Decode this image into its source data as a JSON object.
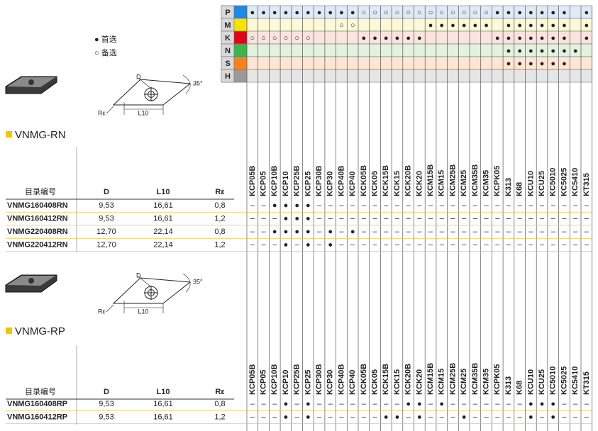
{
  "legend": {
    "preferred": "● 首选",
    "alternative": "○ 备选"
  },
  "grades": [
    "KCP05B",
    "KCP05",
    "KCP10B",
    "KCP10",
    "KCP25B",
    "KCP25",
    "KCP30B",
    "KCP30",
    "KCP40B",
    "KCP40",
    "KCK05B",
    "KCK05",
    "KCK15B",
    "KCK15",
    "KCK20B",
    "KCK20",
    "KCM15B",
    "KCM15",
    "KCM25B",
    "KCM25",
    "KCM35B",
    "KCM35",
    "KCPK05",
    "K313",
    "K68",
    "KCU10",
    "KCU25",
    "KC5010",
    "KC5025",
    "KC5410",
    "KT315"
  ],
  "materials": [
    {
      "code": "P",
      "color": "#1e88e5",
      "background": "#dfeaf6",
      "marks": [
        "●",
        "●",
        "●",
        "●",
        "●",
        "●",
        "●",
        "●",
        "●",
        "●",
        "○",
        "○",
        "○",
        "○",
        "○",
        "○",
        "○",
        "○",
        "○",
        "○",
        "○",
        "○",
        "●",
        "●",
        "●",
        "●",
        "●",
        "●",
        "●",
        null,
        "●"
      ]
    },
    {
      "code": "M",
      "color": "#ffe100",
      "background": "#fdf9d8",
      "marks": [
        null,
        null,
        null,
        null,
        null,
        null,
        null,
        null,
        "○",
        "○",
        null,
        null,
        null,
        null,
        null,
        null,
        "●",
        "●",
        "●",
        "●",
        "●",
        "●",
        null,
        "●",
        "●",
        "●",
        "●",
        "●",
        "●",
        null,
        "●"
      ]
    },
    {
      "code": "K",
      "color": "#e2001a",
      "background": "#fbe3e0",
      "marks": [
        "○",
        "○",
        "○",
        "○",
        "○",
        "○",
        null,
        null,
        null,
        null,
        "●",
        "●",
        "●",
        "●",
        "●",
        "●",
        null,
        null,
        null,
        null,
        null,
        null,
        "●",
        "●",
        "●",
        "●",
        "●",
        "●",
        "●",
        null,
        "●"
      ]
    },
    {
      "code": "N",
      "color": "#3cb54a",
      "background": "#e3f1df",
      "marks": [
        null,
        null,
        null,
        null,
        null,
        null,
        null,
        null,
        null,
        null,
        null,
        null,
        null,
        null,
        null,
        null,
        null,
        null,
        null,
        null,
        null,
        null,
        null,
        "●",
        "●",
        "●",
        "●",
        "●",
        "●",
        "●",
        null
      ]
    },
    {
      "code": "S",
      "color": "#f58220",
      "background": "#fde6d3",
      "marks": [
        null,
        null,
        null,
        null,
        null,
        null,
        null,
        null,
        null,
        null,
        null,
        null,
        null,
        null,
        null,
        null,
        null,
        null,
        null,
        null,
        null,
        null,
        null,
        "●",
        "●",
        "●",
        "●",
        "●",
        "●",
        null,
        null
      ]
    },
    {
      "code": "H",
      "color": "#9a9a9a",
      "background": "#e6e6e6",
      "marks": [
        null,
        null,
        null,
        null,
        null,
        null,
        null,
        null,
        null,
        null,
        null,
        null,
        null,
        null,
        null,
        null,
        null,
        null,
        null,
        null,
        null,
        null,
        null,
        null,
        null,
        null,
        null,
        null,
        null,
        null,
        null
      ]
    }
  ],
  "sections": [
    {
      "title": "VNMG-RN",
      "diagram": {
        "d": "D",
        "l10": "L10",
        "re": "Rε",
        "angle": "35°"
      },
      "headers": [
        "目录编号",
        "D",
        "L10",
        "Rε"
      ],
      "rows": [
        {
          "cells": [
            "VNMG160408RN",
            "9,53",
            "16,61",
            "0,8"
          ],
          "marks": [
            "–",
            "–",
            "●",
            "●",
            "●",
            "●",
            "–",
            "–",
            "–",
            "–",
            "–",
            "–",
            "–",
            "–",
            "–",
            "–",
            "–",
            "–",
            "–",
            "–",
            "–",
            "–",
            "–",
            "–",
            "–",
            "–",
            "–",
            "–",
            "–",
            "–",
            "–"
          ]
        },
        {
          "cells": [
            "VNMG160412RN",
            "9,53",
            "16,61",
            "1,2"
          ],
          "marks": [
            "–",
            "–",
            "–",
            "●",
            "●",
            "●",
            "–",
            "–",
            "–",
            "–",
            "–",
            "–",
            "–",
            "–",
            "–",
            "–",
            "–",
            "–",
            "–",
            "–",
            "–",
            "–",
            "–",
            "–",
            "–",
            "–",
            "–",
            "–",
            "–",
            "–",
            "–"
          ]
        },
        {
          "cells": [
            "VNMG220408RN",
            "12,70",
            "22,14",
            "0,8"
          ],
          "marks": [
            "–",
            "–",
            "●",
            "●",
            "●",
            "●",
            "–",
            "●",
            "–",
            "●",
            "–",
            "–",
            "–",
            "–",
            "–",
            "–",
            "–",
            "–",
            "–",
            "–",
            "–",
            "–",
            "–",
            "–",
            "–",
            "–",
            "–",
            "–",
            "–",
            "–",
            "–"
          ]
        },
        {
          "cells": [
            "VNMG220412RN",
            "12,70",
            "22,14",
            "1,2"
          ],
          "marks": [
            "–",
            "–",
            "–",
            "●",
            "–",
            "●",
            "–",
            "●",
            "–",
            "–",
            "–",
            "–",
            "–",
            "–",
            "–",
            "–",
            "–",
            "–",
            "–",
            "–",
            "–",
            "–",
            "–",
            "–",
            "–",
            "–",
            "–",
            "–",
            "–",
            "–",
            "–"
          ]
        }
      ]
    },
    {
      "title": "VNMG-RP",
      "diagram": {
        "d": "D",
        "l10": "L10",
        "re": "Rε",
        "angle": "35°"
      },
      "headers": [
        "目录编号",
        "D",
        "L10",
        "Rε"
      ],
      "rows": [
        {
          "cells": [
            "VNMG160408RP",
            "9,53",
            "16,61",
            "0,8"
          ],
          "marks": [
            "–",
            "–",
            "–",
            "●",
            "–",
            "●",
            "–",
            "–",
            "–",
            "–",
            "–",
            "–",
            "–",
            "–",
            "●",
            "●",
            "–",
            "●",
            "–",
            "–",
            "–",
            "–",
            "–",
            "–",
            "–",
            "●",
            "●",
            "●",
            "–",
            "–",
            "–"
          ]
        },
        {
          "cells": [
            "VNMG160412RP",
            "9,53",
            "16,61",
            "1,2"
          ],
          "marks": [
            "–",
            "–",
            "–",
            "●",
            "–",
            "●",
            "–",
            "–",
            "–",
            "–",
            "–",
            "–",
            "●",
            "●",
            "–",
            "●",
            "–",
            "–",
            "–",
            "●",
            "–",
            "–",
            "–",
            "–",
            "–",
            "●",
            "–",
            "●",
            "–",
            "–",
            "–"
          ]
        }
      ]
    }
  ]
}
